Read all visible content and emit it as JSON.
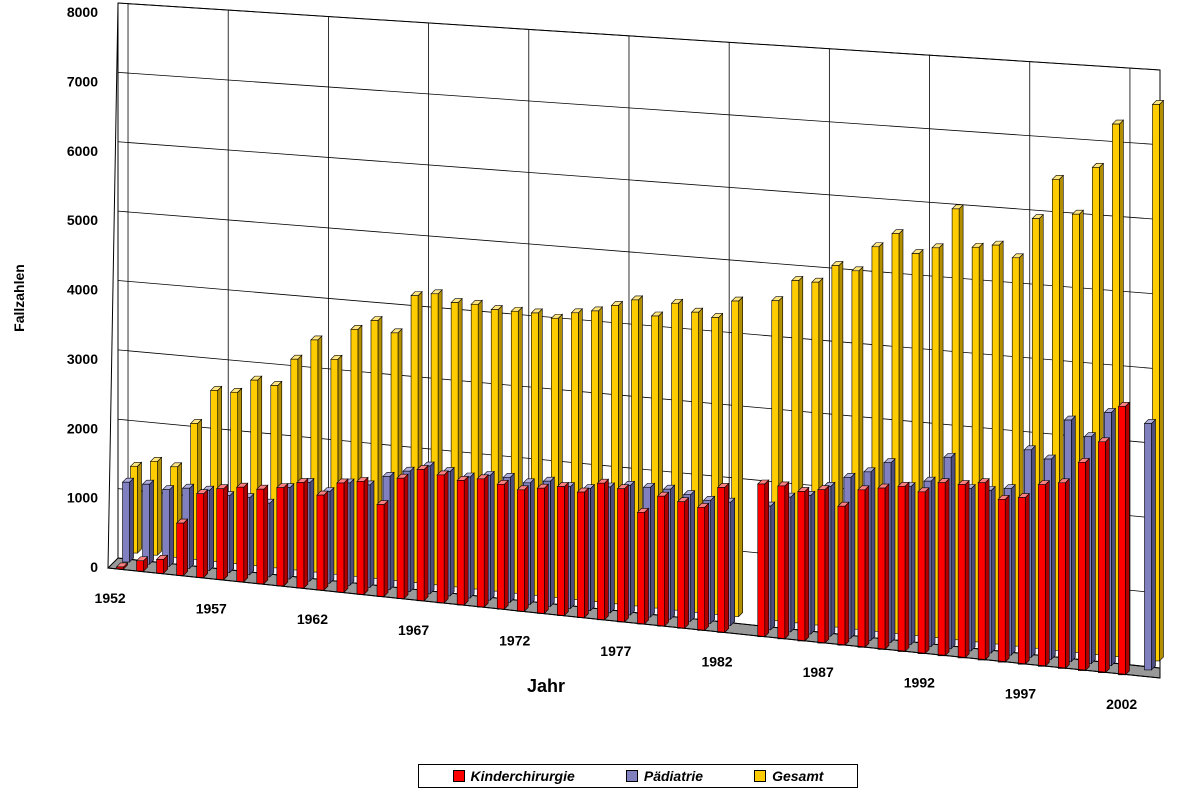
{
  "chart_data": {
    "type": "bar",
    "style": "3d-perspective-clustered-columns",
    "title": "",
    "xlabel": "Jahr",
    "ylabel": "Fallzahlen",
    "ylim": [
      0,
      8000
    ],
    "yticks": [
      0,
      1000,
      2000,
      3000,
      4000,
      5000,
      6000,
      7000,
      8000
    ],
    "xtick_labels": [
      "1952",
      "1957",
      "1962",
      "1967",
      "1972",
      "1977",
      "1982",
      "1987",
      "1992",
      "1997",
      "2002"
    ],
    "grid": true,
    "legend_position": "bottom",
    "x": [
      1952,
      1953,
      1954,
      1955,
      1956,
      1957,
      1958,
      1959,
      1960,
      1961,
      1962,
      1963,
      1964,
      1965,
      1966,
      1967,
      1968,
      1969,
      1970,
      1971,
      1972,
      1973,
      1974,
      1975,
      1976,
      1977,
      1978,
      1979,
      1980,
      1981,
      1982,
      1983,
      1984,
      1985,
      1986,
      1987,
      1988,
      1989,
      1990,
      1991,
      1992,
      1993,
      1994,
      1995,
      1996,
      1997,
      1998,
      1999,
      2000,
      2001,
      2002,
      2003
    ],
    "series": [
      {
        "name": "Kinderchirurgie",
        "color": "#ff0000",
        "values": [
          30,
          150,
          200,
          750,
          1200,
          1300,
          1350,
          1350,
          1400,
          1500,
          1350,
          1550,
          1600,
          1300,
          1700,
          1850,
          1800,
          1750,
          1800,
          1750,
          1700,
          1750,
          1800,
          1750,
          1900,
          1850,
          1550,
          1800,
          1750,
          1700,
          2000,
          0,
          2100,
          2100,
          2050,
          2100,
          1900,
          2150,
          2200,
          2250,
          2200,
          2350,
          2350,
          2400,
          2200,
          2250,
          2450,
          2500,
          2800,
          3100,
          3600,
          0
        ]
      },
      {
        "name": "Pädiatrie",
        "color": "#8080c0",
        "values": [
          1150,
          1150,
          1100,
          1150,
          1150,
          1100,
          1100,
          1050,
          1300,
          1400,
          1300,
          1450,
          1450,
          1600,
          1700,
          1800,
          1750,
          1700,
          1750,
          1750,
          1700,
          1750,
          1700,
          1700,
          1750,
          1800,
          1800,
          1800,
          1750,
          1700,
          1700,
          0,
          1700,
          1850,
          1900,
          2050,
          2200,
          2300,
          2450,
          2150,
          2250,
          2600,
          2200,
          2200,
          2250,
          2800,
          2700,
          3250,
          3050,
          3400,
          0,
          3300
        ]
      },
      {
        "name": "Gesamt",
        "color": "#ffcc00",
        "values": [
          1250,
          1350,
          1300,
          1950,
          2450,
          2450,
          2650,
          2600,
          3000,
          3300,
          3050,
          3500,
          3650,
          3500,
          4050,
          4100,
          4000,
          4000,
          3950,
          3950,
          3950,
          3900,
          4000,
          4050,
          4150,
          4250,
          4050,
          4250,
          4150,
          4100,
          4350,
          0,
          4400,
          4700,
          4700,
          4950,
          4900,
          5250,
          5450,
          5200,
          5300,
          5850,
          5350,
          5400,
          5250,
          5800,
          6350,
          5900,
          6550,
          7150,
          0,
          7450
        ]
      }
    ]
  },
  "legend": {
    "items": [
      {
        "label": "Kinderchirurgie",
        "color": "#ff0000"
      },
      {
        "label": "Pädiatrie",
        "color": "#8080c0"
      },
      {
        "label": "Gesamt",
        "color": "#ffcc00"
      }
    ]
  }
}
